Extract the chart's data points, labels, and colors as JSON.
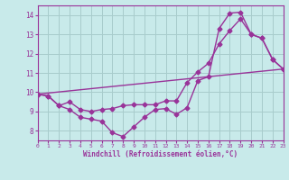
{
  "line1_x": [
    0,
    1,
    2,
    3,
    4,
    5,
    6,
    7,
    8,
    9,
    10,
    11,
    12,
    13,
    14,
    15,
    16,
    17,
    18,
    19,
    20,
    21,
    22,
    23
  ],
  "line1_y": [
    9.9,
    9.8,
    9.3,
    9.1,
    8.7,
    8.6,
    8.5,
    7.9,
    7.7,
    8.2,
    8.7,
    9.1,
    9.15,
    8.85,
    9.2,
    10.6,
    10.8,
    13.3,
    14.1,
    14.15,
    13.0,
    12.8,
    11.7,
    11.2
  ],
  "line2_x": [
    0,
    1,
    2,
    3,
    4,
    5,
    6,
    7,
    8,
    9,
    10,
    11,
    12,
    13,
    14,
    15,
    16,
    17,
    18,
    19,
    20,
    21,
    22,
    23
  ],
  "line2_y": [
    9.9,
    9.8,
    9.3,
    9.5,
    9.1,
    9.0,
    9.1,
    9.15,
    9.3,
    9.35,
    9.35,
    9.35,
    9.55,
    9.55,
    10.5,
    11.05,
    11.5,
    12.5,
    13.2,
    13.8,
    13.0,
    12.8,
    11.7,
    11.2
  ],
  "line3_x": [
    0,
    23
  ],
  "line3_y": [
    9.9,
    11.2
  ],
  "line_color": "#993399",
  "marker": "D",
  "markersize": 2.5,
  "linewidth": 1.0,
  "bg_color": "#c8eaea",
  "grid_color": "#a8cccc",
  "xlabel": "Windchill (Refroidissement éolien,°C)",
  "xlim": [
    0,
    23
  ],
  "ylim": [
    7.5,
    14.5
  ],
  "yticks": [
    8,
    9,
    10,
    11,
    12,
    13,
    14
  ],
  "xticks": [
    0,
    1,
    2,
    3,
    4,
    5,
    6,
    7,
    8,
    9,
    10,
    11,
    12,
    13,
    14,
    15,
    16,
    17,
    18,
    19,
    20,
    21,
    22,
    23
  ]
}
